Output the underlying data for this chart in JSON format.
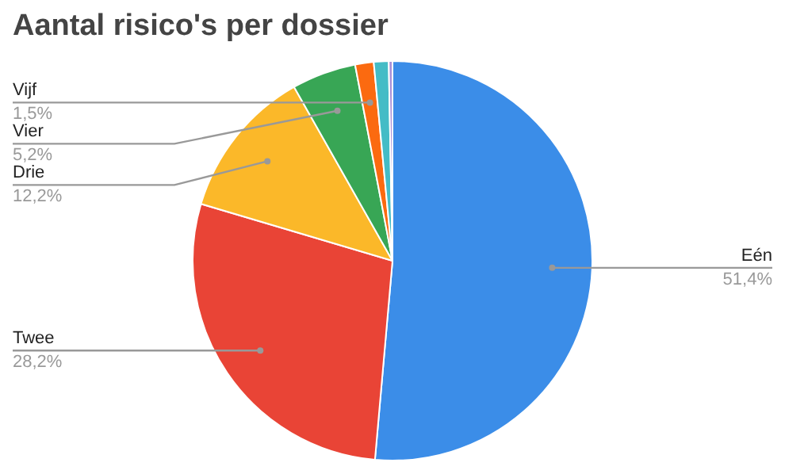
{
  "chart_data": {
    "type": "pie",
    "title": "Aantal risico's per dossier",
    "categories": [
      "Eén",
      "Twee",
      "Drie",
      "Vier",
      "Vijf",
      null,
      null
    ],
    "values": [
      51.4,
      28.2,
      12.2,
      5.2,
      1.5,
      1.2,
      0.3
    ],
    "colors": [
      "#3b8de8",
      "#e94436",
      "#fbb829",
      "#38a655",
      "#fb6a10",
      "#44bcc6",
      "#a88fd8"
    ],
    "value_labels": [
      "51,4%",
      "28,2%",
      "12,2%",
      "5,2%",
      "1,5%",
      null,
      null
    ],
    "legend": false
  }
}
